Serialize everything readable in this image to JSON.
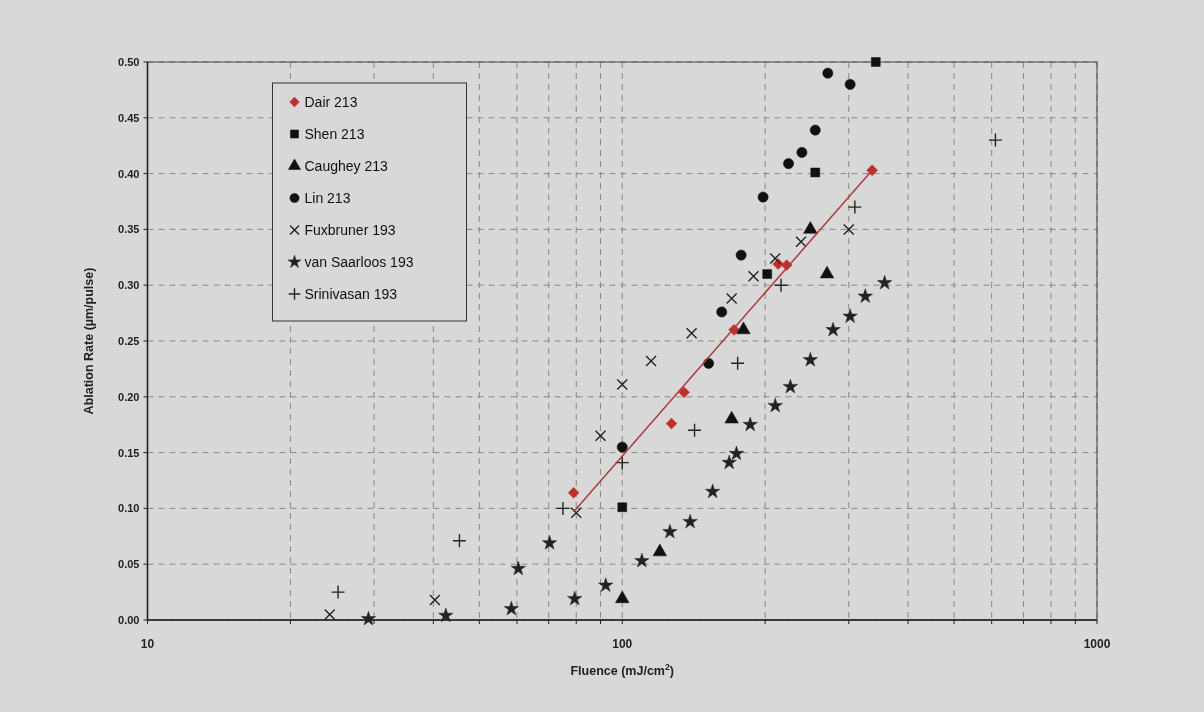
{
  "chart_data": {
    "type": "scatter",
    "xlabel": "Fluence (mJ/cm$^{2}$)",
    "ylabel": "Ablation Rate (µm/pulse)",
    "log": "x",
    "grid": true,
    "legend": "top left",
    "xlim": [
      10,
      1000
    ],
    "xticks": [
      10,
      {
        "value": 20,
        "label": null
      },
      {
        "value": 30,
        "label": null
      },
      {
        "value": 40,
        "label": null
      },
      {
        "value": 50,
        "label": null
      },
      {
        "value": 60,
        "label": null
      },
      {
        "value": 70,
        "label": null
      },
      {
        "value": 80,
        "label": null
      },
      {
        "value": 90,
        "label": null
      },
      100,
      {
        "value": 200,
        "label": null
      },
      {
        "value": 300,
        "label": null
      },
      {
        "value": 400,
        "label": null
      },
      {
        "value": 500,
        "label": null
      },
      {
        "value": 600,
        "label": null
      },
      {
        "value": 700,
        "label": null
      },
      {
        "value": 800,
        "label": null
      },
      {
        "value": 900,
        "label": null
      },
      1000
    ],
    "ylim": [
      0,
      0.5
    ],
    "yticks": [
      {
        "value": 0,
        "label": "0.00"
      },
      {
        "value": 0.05,
        "label": "0.05"
      },
      {
        "value": 0.1,
        "label": "0.10"
      },
      {
        "value": 0.15,
        "label": "0.15"
      },
      {
        "value": 0.2,
        "label": "0.20"
      },
      {
        "value": 0.25,
        "label": "0.25"
      },
      {
        "value": 0.3,
        "label": "0.30"
      },
      {
        "value": 0.35,
        "label": "0.35"
      },
      {
        "value": 0.4,
        "label": "0.40"
      },
      {
        "value": 0.45,
        "label": "0.45"
      },
      {
        "value": 0.5,
        "label": "0.50"
      }
    ],
    "series": [
      {
        "name": "Dair 213",
        "color": "#c0302a",
        "marker": "diamond",
        "x": [
          79,
          127,
          135,
          172,
          213,
          222,
          336
        ],
        "values": [
          0.114,
          0.176,
          0.204,
          0.26,
          0.319,
          0.318,
          0.403
        ]
      },
      {
        "name": "Shen 213",
        "color": "#111111",
        "marker": "square",
        "x": [
          100,
          202,
          255,
          342
        ],
        "values": [
          0.101,
          0.31,
          0.401,
          0.5
        ]
      },
      {
        "name": "Caughey 213",
        "color": "#111111",
        "marker": "triangle",
        "x": [
          100,
          120,
          170,
          180,
          249,
          270
        ],
        "values": [
          0.019,
          0.061,
          0.18,
          0.26,
          0.35,
          0.31
        ]
      },
      {
        "name": "Lin 213",
        "color": "#111111",
        "marker": "circle",
        "x": [
          100,
          152,
          162,
          178,
          198,
          224,
          239,
          255,
          271,
          302
        ],
        "values": [
          0.155,
          0.23,
          0.276,
          0.327,
          0.379,
          0.409,
          0.419,
          0.439,
          0.49,
          0.48
        ]
      },
      {
        "name": "Fuxbruner 193",
        "color": "#222222",
        "marker": "x",
        "x": [
          24.2,
          40.3,
          80,
          90,
          100,
          115,
          140,
          170,
          189,
          210,
          238,
          300
        ],
        "values": [
          0.005,
          0.018,
          0.096,
          0.165,
          0.211,
          0.232,
          0.257,
          0.288,
          0.308,
          0.324,
          0.339,
          0.35
        ]
      },
      {
        "name": "van Saarloos 193",
        "color": "#222222",
        "marker": "star",
        "x": [
          29.2,
          42.5,
          58.4,
          60.4,
          70.3,
          79.4,
          92.3,
          110,
          126,
          139,
          155,
          168,
          174,
          186,
          210,
          226,
          249,
          278,
          302,
          325,
          357
        ],
        "values": [
          0.001,
          0.004,
          0.01,
          0.046,
          0.069,
          0.019,
          0.031,
          0.053,
          0.079,
          0.088,
          0.115,
          0.141,
          0.149,
          0.175,
          0.192,
          0.209,
          0.233,
          0.26,
          0.272,
          0.29,
          0.302
        ]
      },
      {
        "name": "Srinivasan 193",
        "color": "#222222",
        "marker": "cross",
        "x": [
          25.2,
          45.4,
          75,
          100,
          142,
          175,
          216,
          309,
          611
        ],
        "values": [
          0.025,
          0.071,
          0.1,
          0.141,
          0.17,
          0.23,
          0.3,
          0.37,
          0.43
        ]
      },
      {
        "type": "line",
        "color": "#b03a3a",
        "marker": "none",
        "x": [
          79,
          336
        ],
        "values": [
          0.097,
          0.403
        ]
      }
    ]
  }
}
